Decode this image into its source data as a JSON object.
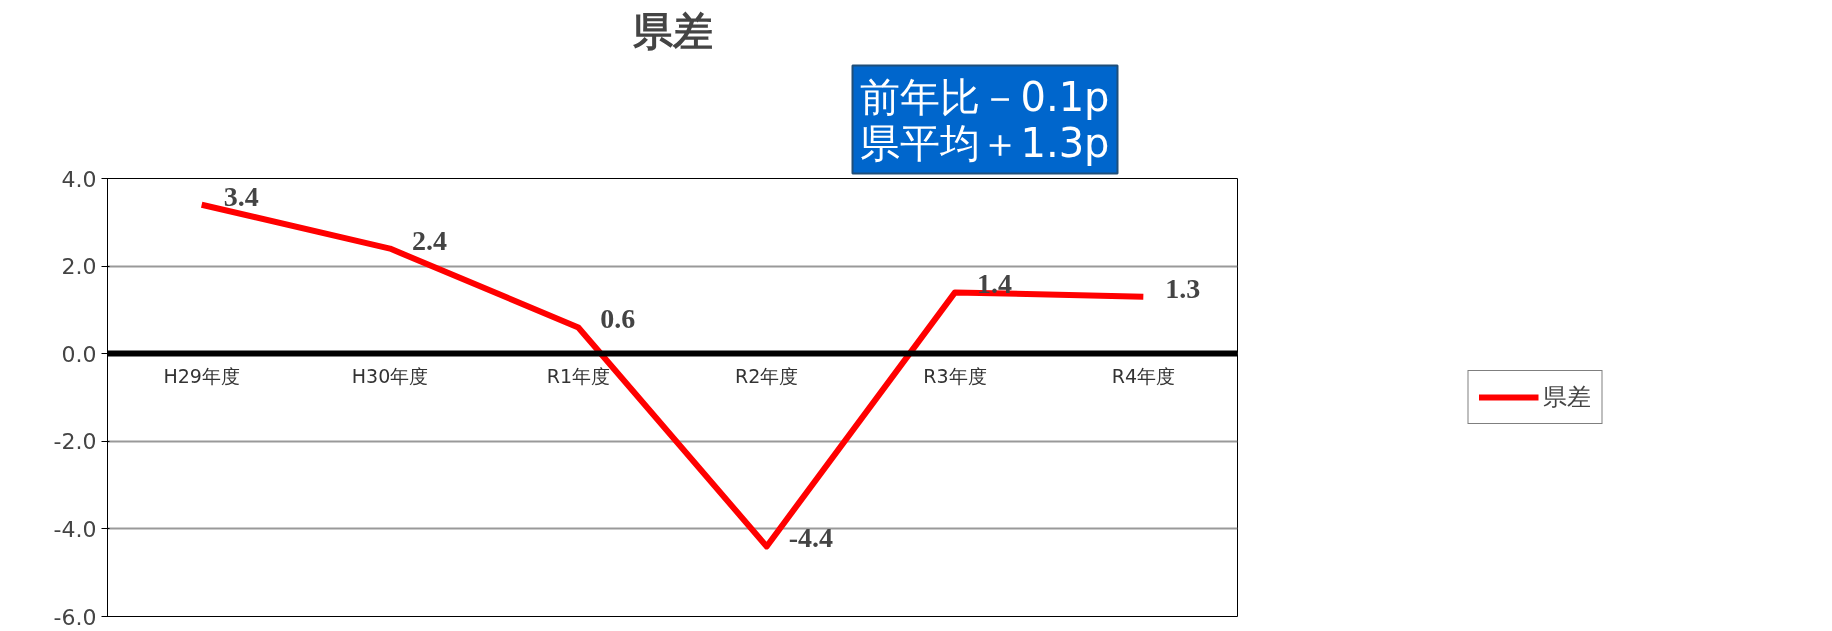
{
  "chart_data": {
    "type": "line",
    "title": "県差",
    "categories": [
      "H29年度",
      "H30年度",
      "R1年度",
      "R2年度",
      "R3年度",
      "R4年度"
    ],
    "series": [
      {
        "name": "県差",
        "color": "#ff0000",
        "values": [
          3.4,
          2.4,
          0.6,
          -4.4,
          1.4,
          1.3
        ]
      }
    ],
    "ylim": [
      -6,
      4
    ],
    "yticks": [
      {
        "value": -6,
        "label": "-6.0"
      },
      {
        "value": -4,
        "label": "-4.0"
      },
      {
        "value": -2,
        "label": "-2.0"
      },
      {
        "value": 0,
        "label": "0.0"
      },
      {
        "value": 2,
        "label": "2.0"
      },
      {
        "value": 4,
        "label": "4.0"
      }
    ],
    "grid": "y",
    "legend": "right",
    "data_labels": true,
    "marker": "none",
    "line_style": "solid",
    "annotations": [
      "前年比－0.1p\n県平均＋1.3p"
    ]
  }
}
